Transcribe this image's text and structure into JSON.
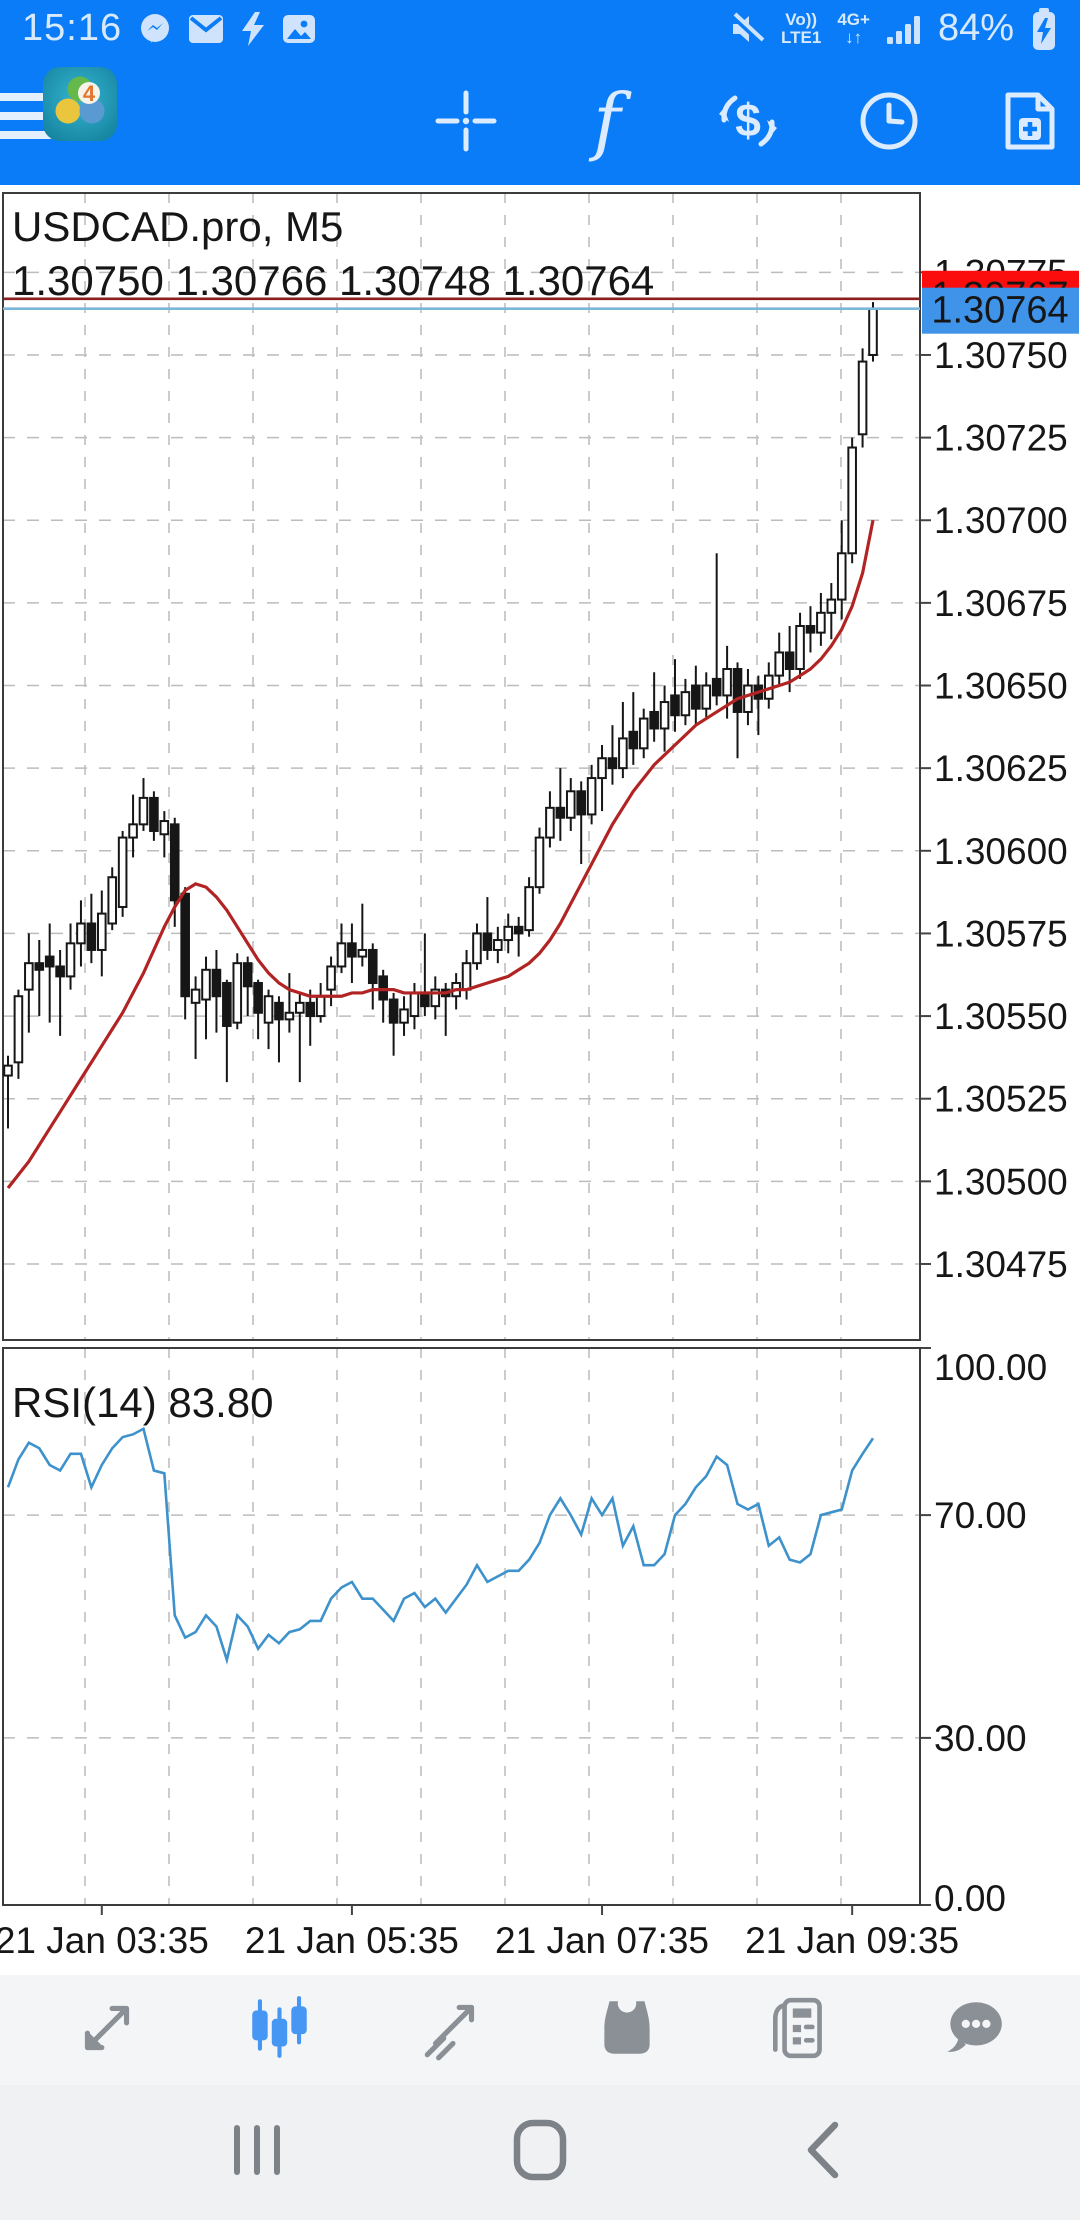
{
  "status_bar": {
    "time": "15:16",
    "battery_pct": "84%",
    "volte_top": "Vo))",
    "volte_bottom": "LTE1",
    "net_type": "4G+",
    "net_arrows": "↓↑",
    "icons_left": [
      "messenger-icon",
      "gmail-icon",
      "flash-icon",
      "gallery-icon"
    ],
    "icons_right": [
      "mute-icon",
      "volte-indicator",
      "4g-indicator",
      "signal-icon",
      "battery-charging-icon"
    ]
  },
  "app_bar": {
    "icons": [
      "menu-icon",
      "mt4-logo",
      "crosshair-icon",
      "indicators-icon",
      "trade-icon",
      "clock-icon",
      "new-order-icon"
    ]
  },
  "chart": {
    "symbol_title": "USDCAD.pro, M5",
    "ohlc_line": "1.30750 1.30766 1.30748 1.30764",
    "rsi_label": "RSI(14) 83.80",
    "bid_badge": "1.30764",
    "ask_badge": "1.30767"
  },
  "chart_data": {
    "type": "candlestick",
    "symbol": "USDCAD.pro",
    "timeframe": "M5",
    "title": "USDCAD.pro, M5",
    "ohlc_current": {
      "open": 1.3075,
      "high": 1.30766,
      "low": 1.30748,
      "close": 1.30764
    },
    "bid": 1.30764,
    "ask": 1.30767,
    "main_ylim": [
      1.30452,
      1.30799
    ],
    "price_axis_labels": [
      "1.30775",
      "1.30750",
      "1.30725",
      "1.30700",
      "1.30675",
      "1.30650",
      "1.30625",
      "1.30600",
      "1.30575",
      "1.30550",
      "1.30525",
      "1.30500",
      "1.30475"
    ],
    "time_ticks": [
      {
        "label": "21 Jan 03:35",
        "bar": 9
      },
      {
        "label": "21 Jan 05:35",
        "bar": 33
      },
      {
        "label": "21 Jan 07:35",
        "bar": 57
      },
      {
        "label": "21 Jan 09:35",
        "bar": 81
      }
    ],
    "candles": [
      [
        1.30532,
        1.30538,
        1.30516,
        1.30535
      ],
      [
        1.30536,
        1.30558,
        1.30531,
        1.30556
      ],
      [
        1.30558,
        1.30575,
        1.30545,
        1.30566
      ],
      [
        1.30566,
        1.30573,
        1.3055,
        1.30564
      ],
      [
        1.30568,
        1.30578,
        1.30548,
        1.30565
      ],
      [
        1.30565,
        1.3057,
        1.30544,
        1.30562
      ],
      [
        1.30562,
        1.30578,
        1.30558,
        1.30572
      ],
      [
        1.30572,
        1.30585,
        1.30565,
        1.30578
      ],
      [
        1.30578,
        1.30587,
        1.30566,
        1.3057
      ],
      [
        1.3057,
        1.30588,
        1.30562,
        1.30581
      ],
      [
        1.30578,
        1.30595,
        1.30576,
        1.30592
      ],
      [
        1.30583,
        1.30606,
        1.3058,
        1.30604
      ],
      [
        1.30604,
        1.30617,
        1.30598,
        1.30608
      ],
      [
        1.30608,
        1.30622,
        1.30606,
        1.30616
      ],
      [
        1.30616,
        1.30618,
        1.30603,
        1.30606
      ],
      [
        1.30605,
        1.30612,
        1.30598,
        1.30609
      ],
      [
        1.30608,
        1.3061,
        1.30577,
        1.30585
      ],
      [
        1.30587,
        1.30589,
        1.30549,
        1.30556
      ],
      [
        1.30554,
        1.30562,
        1.30537,
        1.30558
      ],
      [
        1.30555,
        1.30568,
        1.30543,
        1.30564
      ],
      [
        1.30564,
        1.3057,
        1.30545,
        1.30556
      ],
      [
        1.3056,
        1.30561,
        1.3053,
        1.30547
      ],
      [
        1.30548,
        1.30569,
        1.30546,
        1.30566
      ],
      [
        1.30566,
        1.30568,
        1.3055,
        1.30559
      ],
      [
        1.3056,
        1.30561,
        1.30543,
        1.30551
      ],
      [
        1.30548,
        1.30558,
        1.3054,
        1.30556
      ],
      [
        1.30554,
        1.30556,
        1.30536,
        1.30549
      ],
      [
        1.30549,
        1.30563,
        1.30545,
        1.30551
      ],
      [
        1.30551,
        1.30557,
        1.3053,
        1.30554
      ],
      [
        1.30554,
        1.30558,
        1.30541,
        1.3055
      ],
      [
        1.3055,
        1.3056,
        1.30548,
        1.30556
      ],
      [
        1.30558,
        1.30568,
        1.30553,
        1.30565
      ],
      [
        1.30565,
        1.30578,
        1.30563,
        1.30572
      ],
      [
        1.30572,
        1.30578,
        1.3056,
        1.30568
      ],
      [
        1.30568,
        1.30584,
        1.30565,
        1.3057
      ],
      [
        1.3057,
        1.30572,
        1.30552,
        1.3056
      ],
      [
        1.30562,
        1.30564,
        1.30548,
        1.30555
      ],
      [
        1.30555,
        1.30557,
        1.30538,
        1.30548
      ],
      [
        1.30548,
        1.30556,
        1.30544,
        1.30552
      ],
      [
        1.3055,
        1.3056,
        1.30546,
        1.30557
      ],
      [
        1.30557,
        1.30575,
        1.3055,
        1.30553
      ],
      [
        1.30553,
        1.30562,
        1.30549,
        1.30558
      ],
      [
        1.30558,
        1.3056,
        1.30544,
        1.30556
      ],
      [
        1.30556,
        1.30563,
        1.30552,
        1.3056
      ],
      [
        1.30558,
        1.3057,
        1.30555,
        1.30566
      ],
      [
        1.30566,
        1.30578,
        1.30564,
        1.30575
      ],
      [
        1.30575,
        1.30586,
        1.30567,
        1.3057
      ],
      [
        1.3057,
        1.30577,
        1.30566,
        1.30573
      ],
      [
        1.30573,
        1.30581,
        1.30569,
        1.30577
      ],
      [
        1.30577,
        1.3058,
        1.30568,
        1.30575
      ],
      [
        1.30576,
        1.30592,
        1.30574,
        1.30589
      ],
      [
        1.30589,
        1.30607,
        1.30587,
        1.30604
      ],
      [
        1.30604,
        1.30618,
        1.30601,
        1.30613
      ],
      [
        1.30613,
        1.30625,
        1.30603,
        1.3061
      ],
      [
        1.3061,
        1.30622,
        1.30606,
        1.30618
      ],
      [
        1.30618,
        1.30621,
        1.30596,
        1.30611
      ],
      [
        1.30611,
        1.30626,
        1.30608,
        1.30622
      ],
      [
        1.30622,
        1.30632,
        1.30612,
        1.30628
      ],
      [
        1.30628,
        1.30638,
        1.3062,
        1.30625
      ],
      [
        1.30625,
        1.30645,
        1.30622,
        1.30634
      ],
      [
        1.30636,
        1.30648,
        1.30626,
        1.30631
      ],
      [
        1.30631,
        1.30643,
        1.30628,
        1.3064
      ],
      [
        1.30642,
        1.30654,
        1.30633,
        1.30637
      ],
      [
        1.30637,
        1.3065,
        1.3063,
        1.30645
      ],
      [
        1.30647,
        1.30658,
        1.30636,
        1.30641
      ],
      [
        1.30641,
        1.30652,
        1.30638,
        1.30648
      ],
      [
        1.3065,
        1.30656,
        1.30638,
        1.30643
      ],
      [
        1.30643,
        1.30654,
        1.3064,
        1.3065
      ],
      [
        1.30652,
        1.3069,
        1.30644,
        1.30647
      ],
      [
        1.30647,
        1.30662,
        1.3064,
        1.30655
      ],
      [
        1.30655,
        1.30657,
        1.30628,
        1.30642
      ],
      [
        1.30642,
        1.30655,
        1.30638,
        1.3065
      ],
      [
        1.3065,
        1.30653,
        1.30635,
        1.30646
      ],
      [
        1.30646,
        1.30657,
        1.30643,
        1.30653
      ],
      [
        1.30653,
        1.30666,
        1.3065,
        1.3066
      ],
      [
        1.3066,
        1.30668,
        1.30648,
        1.30655
      ],
      [
        1.30655,
        1.30672,
        1.30652,
        1.30668
      ],
      [
        1.30668,
        1.30674,
        1.3066,
        1.30666
      ],
      [
        1.30666,
        1.30678,
        1.30662,
        1.30672
      ],
      [
        1.30672,
        1.30681,
        1.30664,
        1.30676
      ],
      [
        1.30676,
        1.307,
        1.3067,
        1.3069
      ],
      [
        1.3069,
        1.30725,
        1.30687,
        1.30722
      ],
      [
        1.30726,
        1.30752,
        1.30722,
        1.30748
      ],
      [
        1.3075,
        1.30766,
        1.30748,
        1.30764
      ]
    ],
    "ma_line": [
      1.30498,
      1.30502,
      1.30506,
      1.30511,
      1.30516,
      1.30521,
      1.30526,
      1.30531,
      1.30536,
      1.30541,
      1.30546,
      1.30551,
      1.30557,
      1.30563,
      1.3057,
      1.30577,
      1.30583,
      1.30588,
      1.3059,
      1.30589,
      1.30586,
      1.30582,
      1.30577,
      1.30572,
      1.30567,
      1.30563,
      1.3056,
      1.30558,
      1.30557,
      1.30556,
      1.30556,
      1.30556,
      1.30556,
      1.30557,
      1.30557,
      1.30558,
      1.30558,
      1.30558,
      1.30557,
      1.30557,
      1.30557,
      1.30557,
      1.30557,
      1.30558,
      1.30558,
      1.30559,
      1.3056,
      1.30561,
      1.30562,
      1.30564,
      1.30566,
      1.30569,
      1.30573,
      1.30578,
      1.30584,
      1.3059,
      1.30596,
      1.30602,
      1.30608,
      1.30613,
      1.30618,
      1.30622,
      1.30626,
      1.30629,
      1.30632,
      1.30635,
      1.30638,
      1.3064,
      1.30642,
      1.30644,
      1.30646,
      1.30647,
      1.30648,
      1.30649,
      1.3065,
      1.30651,
      1.30653,
      1.30655,
      1.30658,
      1.30662,
      1.30667,
      1.30674,
      1.30684,
      1.307
    ],
    "rsi": {
      "label": "RSI(14) 83.80",
      "period": 14,
      "current": 83.8,
      "ylim": [
        0,
        100
      ],
      "axis_labels": [
        {
          "text": "100.00",
          "value": 100
        },
        {
          "text": "70.00",
          "value": 70
        },
        {
          "text": "30.00",
          "value": 30
        },
        {
          "text": "0.00",
          "value": 0
        }
      ],
      "gridlines": [
        70,
        30
      ],
      "values": [
        75,
        80,
        83,
        82,
        79,
        78,
        81,
        81,
        75,
        79,
        82,
        84,
        84.5,
        85.5,
        78,
        77.5,
        52,
        48,
        49,
        52,
        50,
        44,
        52,
        50,
        46,
        48.5,
        47,
        49,
        49.5,
        51,
        51,
        55,
        57,
        58,
        55,
        55,
        53,
        51,
        55,
        56,
        53.5,
        55,
        52.5,
        55,
        57.5,
        61,
        58,
        59,
        60,
        60,
        62,
        65,
        70,
        73,
        70,
        66.5,
        73,
        70,
        73,
        64.5,
        68,
        61,
        61,
        63,
        70,
        72,
        75,
        77,
        80.5,
        79,
        72,
        71,
        72,
        64.5,
        66,
        62,
        61.5,
        63,
        70,
        70.5,
        71,
        78,
        81,
        83.8
      ]
    },
    "colors": {
      "candle": "#161616",
      "ma_line": "#b22424",
      "rsi_line": "#3e92cc",
      "bid_line": "#7ab5dc",
      "ask_line": "#8b1e1e",
      "bid_badge_bg": "#3f93e8",
      "ask_badge_bg": "#fb0d0d",
      "grid": "#bcbcbc",
      "border": "#3c3c3c"
    },
    "legend_position": "none",
    "grid": true
  },
  "bottom_toolbar": {
    "active": "charts",
    "items": [
      {
        "id": "quotes",
        "icon": "quotes-arrows-icon"
      },
      {
        "id": "charts",
        "icon": "candlestick-chart-icon"
      },
      {
        "id": "trade",
        "icon": "trendline-arrow-icon"
      },
      {
        "id": "history",
        "icon": "inbox-tray-icon"
      },
      {
        "id": "news",
        "icon": "newspaper-icon"
      },
      {
        "id": "messages",
        "icon": "chat-bubble-icon"
      }
    ],
    "active_color": "#4697f3",
    "inactive_color": "#8b9096"
  },
  "nav_bar": {
    "items": [
      "recents-icon",
      "home-icon",
      "back-icon"
    ]
  }
}
